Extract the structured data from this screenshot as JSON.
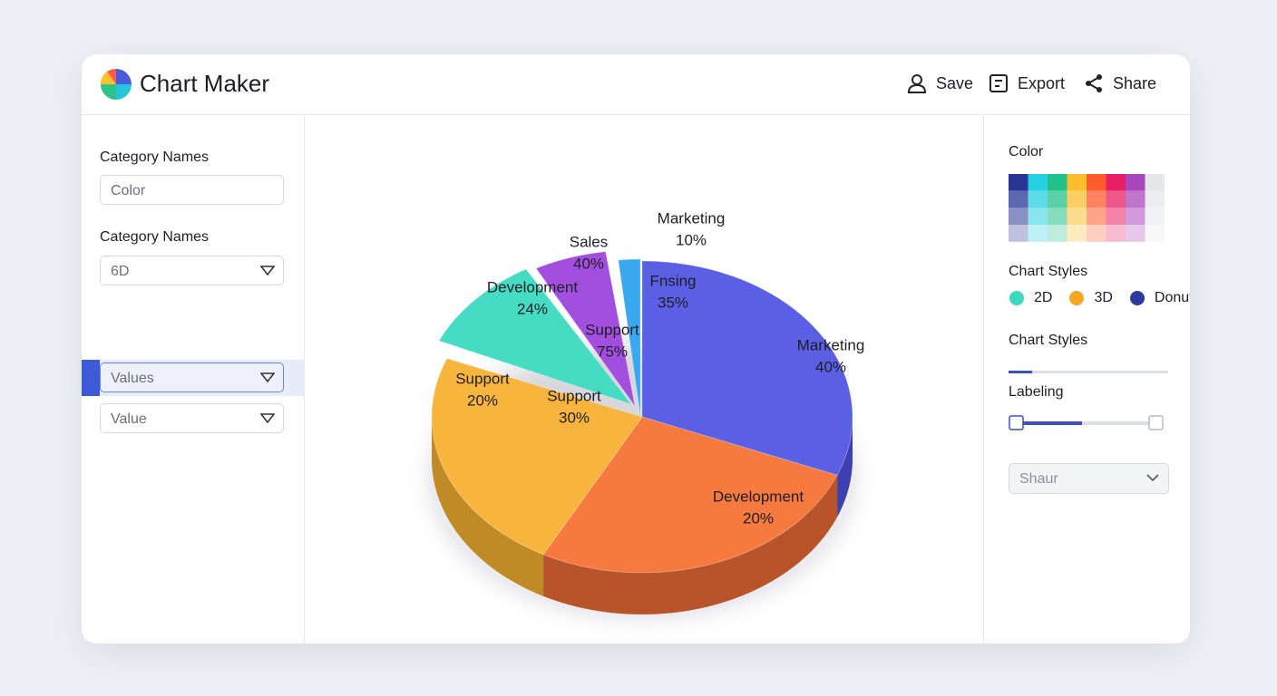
{
  "header": {
    "title": "Chart Maker",
    "actions": [
      "Save",
      "Export",
      "Share"
    ]
  },
  "left_panel": {
    "fields": [
      {
        "label": "Category Names",
        "placeholder": "Color"
      },
      {
        "label": "Category Names",
        "value": "6D"
      }
    ],
    "selects": [
      "Values",
      "Value"
    ]
  },
  "chart": {
    "pie_labels": [
      {
        "name": "Marketing",
        "percent": "10%"
      },
      {
        "name": "Sales",
        "percent": "40%"
      },
      {
        "name": "Development",
        "percent": "24%"
      },
      {
        "name": "Support",
        "percent": "20%"
      },
      {
        "name": "Fnsing",
        "percent": "35%"
      },
      {
        "name": "Support",
        "percent": "75%"
      },
      {
        "name": "Support",
        "percent": "30%"
      },
      {
        "name": "Marketing",
        "percent": "40%"
      },
      {
        "name": "Development",
        "percent": "20%"
      }
    ]
  },
  "right_panel": {
    "color_label": "Color",
    "styles_label": "Chart Styles",
    "style_options": [
      "2D",
      "3D",
      "Donut"
    ],
    "styles_label_2": "Chart Styles",
    "labeling_label": "Labeling",
    "labeling_value": "Shaur"
  }
}
